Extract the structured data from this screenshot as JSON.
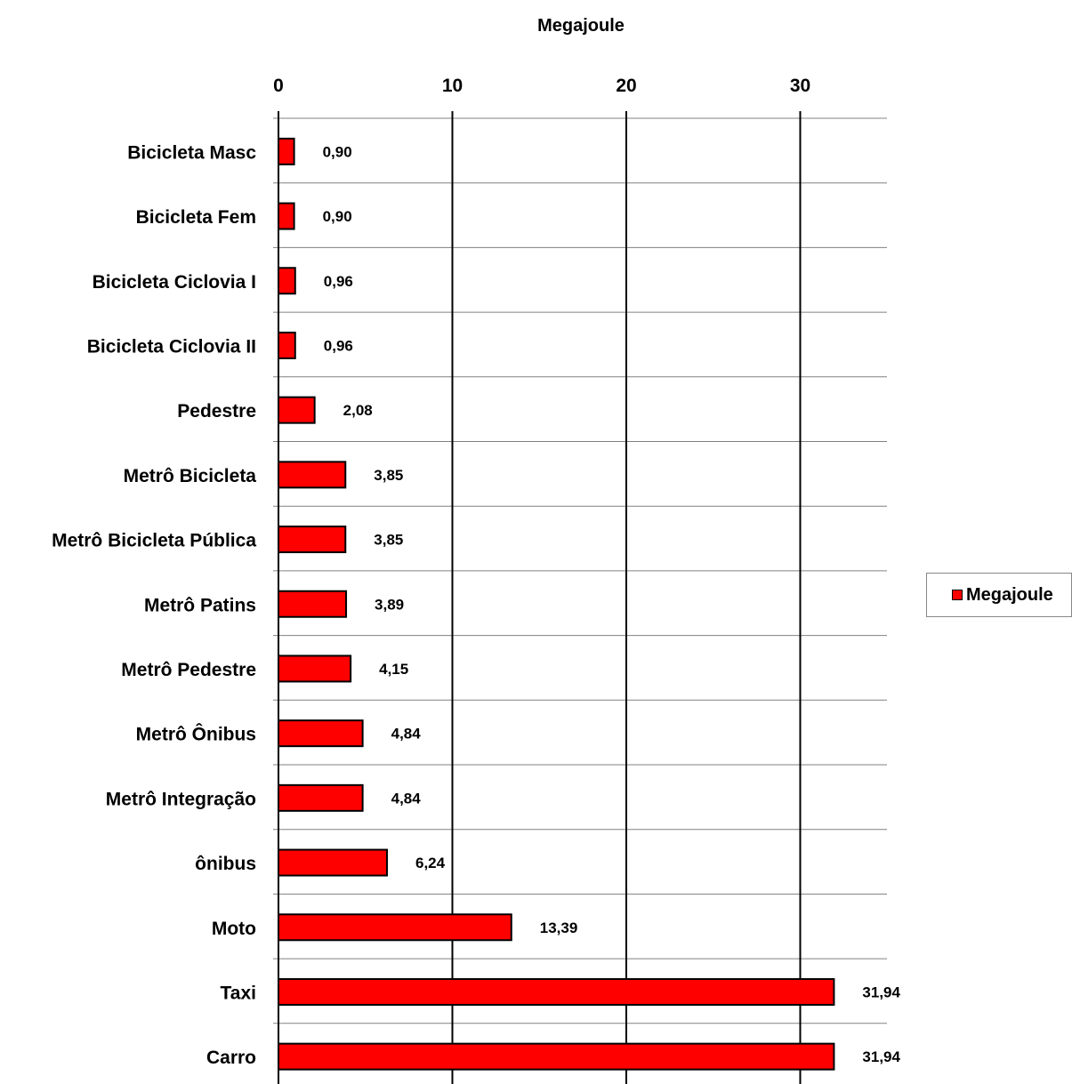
{
  "chart_data": {
    "type": "bar",
    "orientation": "horizontal",
    "title": "Megajoule",
    "categories": [
      "Bicicleta Masc",
      "Bicicleta Fem",
      "Bicicleta Ciclovia I",
      "Bicicleta Ciclovia II",
      "Pedestre",
      "Metrô Bicicleta",
      "Metrô Bicicleta Pública",
      "Metrô Patins",
      "Metrô Pedestre",
      "Metrô Ônibus",
      "Metrô Integração",
      "ônibus",
      "Moto",
      "Taxi",
      "Carro"
    ],
    "series": [
      {
        "name": "Megajoule",
        "color": "#ff0000",
        "values": [
          0.9,
          0.9,
          0.96,
          0.96,
          2.08,
          3.85,
          3.85,
          3.89,
          4.15,
          4.84,
          4.84,
          6.24,
          13.39,
          31.94,
          31.94
        ],
        "data_labels": [
          "0,90",
          "0,90",
          "0,96",
          "0,96",
          "2,08",
          "3,85",
          "3,85",
          "3,89",
          "4,15",
          "4,84",
          "4,84",
          "6,24",
          "13,39",
          "31,94",
          "31,94"
        ]
      }
    ],
    "xlim": [
      0,
      35
    ],
    "x_ticks": [
      0,
      10,
      20,
      30
    ],
    "x_tick_labels": [
      "0",
      "10",
      "20",
      "30"
    ],
    "x_axis_position": "top",
    "grid": true,
    "legend_position": "right"
  }
}
